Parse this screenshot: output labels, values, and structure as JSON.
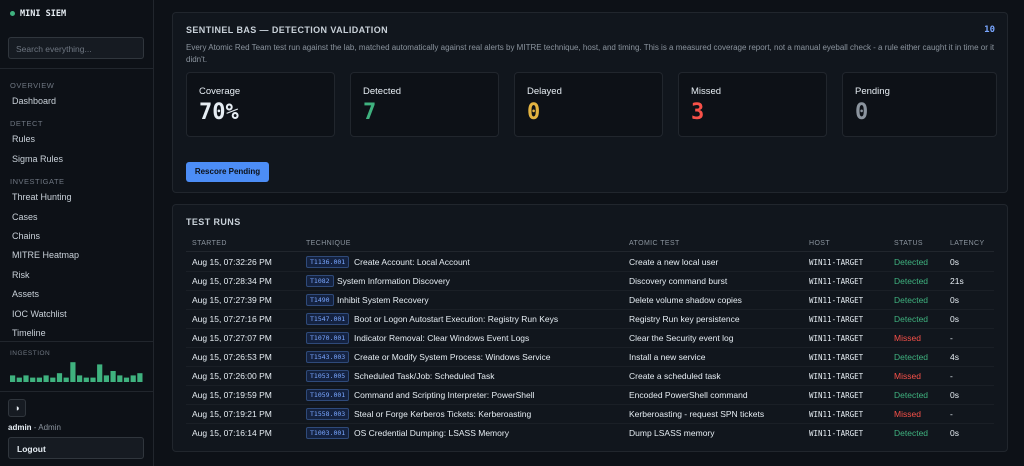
{
  "sidebar": {
    "brand": "MINI SIEM",
    "search_placeholder": "Search everything...",
    "sections": [
      {
        "title": "OVERVIEW",
        "items": [
          "Dashboard"
        ]
      },
      {
        "title": "DETECT",
        "items": [
          "Rules",
          "Sigma Rules"
        ]
      },
      {
        "title": "INVESTIGATE",
        "items": [
          "Threat Hunting",
          "Cases",
          "Chains",
          "MITRE Heatmap",
          "Risk",
          "Assets",
          "IOC Watchlist",
          "Timeline"
        ]
      }
    ],
    "ingestion": {
      "label": "INGESTION",
      "values": [
        3,
        2,
        3,
        2,
        2,
        3,
        2,
        4,
        2,
        9,
        3,
        2,
        2,
        8,
        3,
        5,
        3,
        2,
        3,
        4
      ],
      "max": 10,
      "color": "#3fb27f"
    },
    "user": {
      "name": "admin",
      "separator": "-",
      "role": "Admin"
    },
    "logout": "Logout"
  },
  "validation": {
    "title": "SENTINEL BAS — DETECTION VALIDATION",
    "count": "10",
    "description": "Every Atomic Red Team test run against the lab, matched automatically against real alerts by MITRE technique, host, and timing. This is a measured coverage report, not a manual eyeball check - a rule either caught it in time or it didn't.",
    "stats": [
      {
        "label": "Coverage",
        "value": "70%",
        "color": "#e6edf3"
      },
      {
        "label": "Detected",
        "value": "7",
        "color": "#3fb27f"
      },
      {
        "label": "Delayed",
        "value": "0",
        "color": "#e3b341"
      },
      {
        "label": "Missed",
        "value": "3",
        "color": "#f85149"
      },
      {
        "label": "Pending",
        "value": "0",
        "color": "#8b949e"
      }
    ],
    "button": "Rescore Pending"
  },
  "test_runs": {
    "title": "TEST RUNS",
    "columns": [
      "STARTED",
      "TECHNIQUE",
      "ATOMIC TEST",
      "HOST",
      "STATUS",
      "LATENCY"
    ],
    "rows": [
      {
        "started": "Aug 15, 07:32:26 PM",
        "technique_id": "T1136.001",
        "technique": "Create Account: Local Account",
        "atomic_test": "Create a new local user",
        "host": "WIN11-TARGET",
        "status": "Detected",
        "status_color": "#3fb27f",
        "latency": "0s"
      },
      {
        "started": "Aug 15, 07:28:34 PM",
        "technique_id": "T1082",
        "technique": "System Information Discovery",
        "atomic_test": "Discovery command burst",
        "host": "WIN11-TARGET",
        "status": "Detected",
        "status_color": "#3fb27f",
        "latency": "21s"
      },
      {
        "started": "Aug 15, 07:27:39 PM",
        "technique_id": "T1490",
        "technique": "Inhibit System Recovery",
        "atomic_test": "Delete volume shadow copies",
        "host": "WIN11-TARGET",
        "status": "Detected",
        "status_color": "#3fb27f",
        "latency": "0s"
      },
      {
        "started": "Aug 15, 07:27:16 PM",
        "technique_id": "T1547.001",
        "technique": "Boot or Logon Autostart Execution: Registry Run Keys",
        "atomic_test": "Registry Run key persistence",
        "host": "WIN11-TARGET",
        "status": "Detected",
        "status_color": "#3fb27f",
        "latency": "0s"
      },
      {
        "started": "Aug 15, 07:27:07 PM",
        "technique_id": "T1070.001",
        "technique": "Indicator Removal: Clear Windows Event Logs",
        "atomic_test": "Clear the Security event log",
        "host": "WIN11-TARGET",
        "status": "Missed",
        "status_color": "#f85149",
        "latency": "-"
      },
      {
        "started": "Aug 15, 07:26:53 PM",
        "technique_id": "T1543.003",
        "technique": "Create or Modify System Process: Windows Service",
        "atomic_test": "Install a new service",
        "host": "WIN11-TARGET",
        "status": "Detected",
        "status_color": "#3fb27f",
        "latency": "4s"
      },
      {
        "started": "Aug 15, 07:26:00 PM",
        "technique_id": "T1053.005",
        "technique": "Scheduled Task/Job: Scheduled Task",
        "atomic_test": "Create a scheduled task",
        "host": "WIN11-TARGET",
        "status": "Missed",
        "status_color": "#f85149",
        "latency": "-"
      },
      {
        "started": "Aug 15, 07:19:59 PM",
        "technique_id": "T1059.001",
        "technique": "Command and Scripting Interpreter: PowerShell",
        "atomic_test": "Encoded PowerShell command",
        "host": "WIN11-TARGET",
        "status": "Detected",
        "status_color": "#3fb27f",
        "latency": "0s"
      },
      {
        "started": "Aug 15, 07:19:21 PM",
        "technique_id": "T1558.003",
        "technique": "Steal or Forge Kerberos Tickets: Kerberoasting",
        "atomic_test": "Kerberoasting - request SPN tickets",
        "host": "WIN11-TARGET",
        "status": "Missed",
        "status_color": "#f85149",
        "latency": "-"
      },
      {
        "started": "Aug 15, 07:16:14 PM",
        "technique_id": "T1003.001",
        "technique": "OS Credential Dumping: LSASS Memory",
        "atomic_test": "Dump LSASS memory",
        "host": "WIN11-TARGET",
        "status": "Detected",
        "status_color": "#3fb27f",
        "latency": "0s"
      }
    ]
  }
}
